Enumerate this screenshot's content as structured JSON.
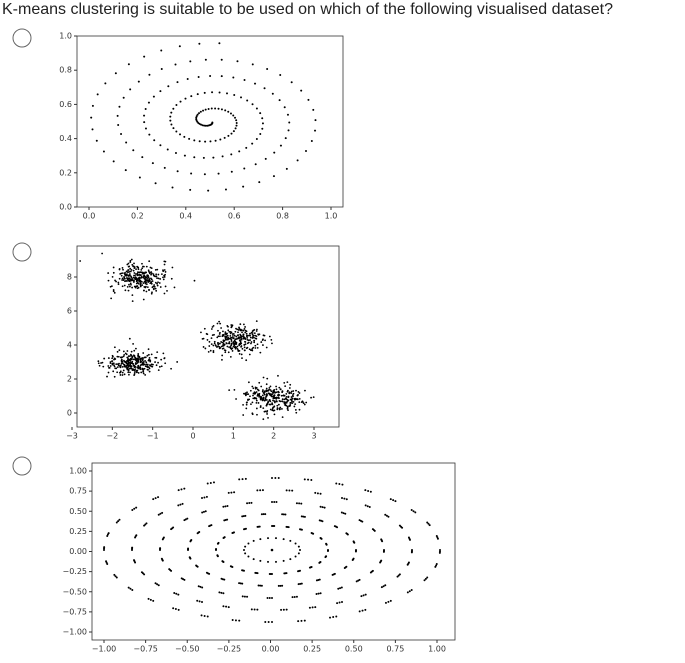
{
  "question": "K-means clustering is suitable to be used on which of the following visualised dataset?",
  "options": [
    {
      "xticks": [
        "0.0",
        "0.2",
        "0.4",
        "0.6",
        "0.8",
        "1.0"
      ],
      "yticks": [
        "1.0",
        "0.8",
        "0.6",
        "0.4",
        "0.2",
        "0.0"
      ]
    },
    {
      "xticks": [
        "−3",
        "−2",
        "−1",
        "0",
        "1",
        "2",
        "3"
      ],
      "yticks": [
        "8",
        "6",
        "4",
        "2",
        "0"
      ]
    },
    {
      "xticks": [
        "−1.00",
        "−0.75",
        "−0.50",
        "−0.25",
        "0.00",
        "0.25",
        "0.50",
        "0.75",
        "1.00"
      ],
      "yticks": [
        "1.00",
        "0.75",
        "0.50",
        "0.25",
        "0.00",
        "−0.25",
        "−0.50",
        "−0.75",
        "−1.00"
      ]
    }
  ]
}
